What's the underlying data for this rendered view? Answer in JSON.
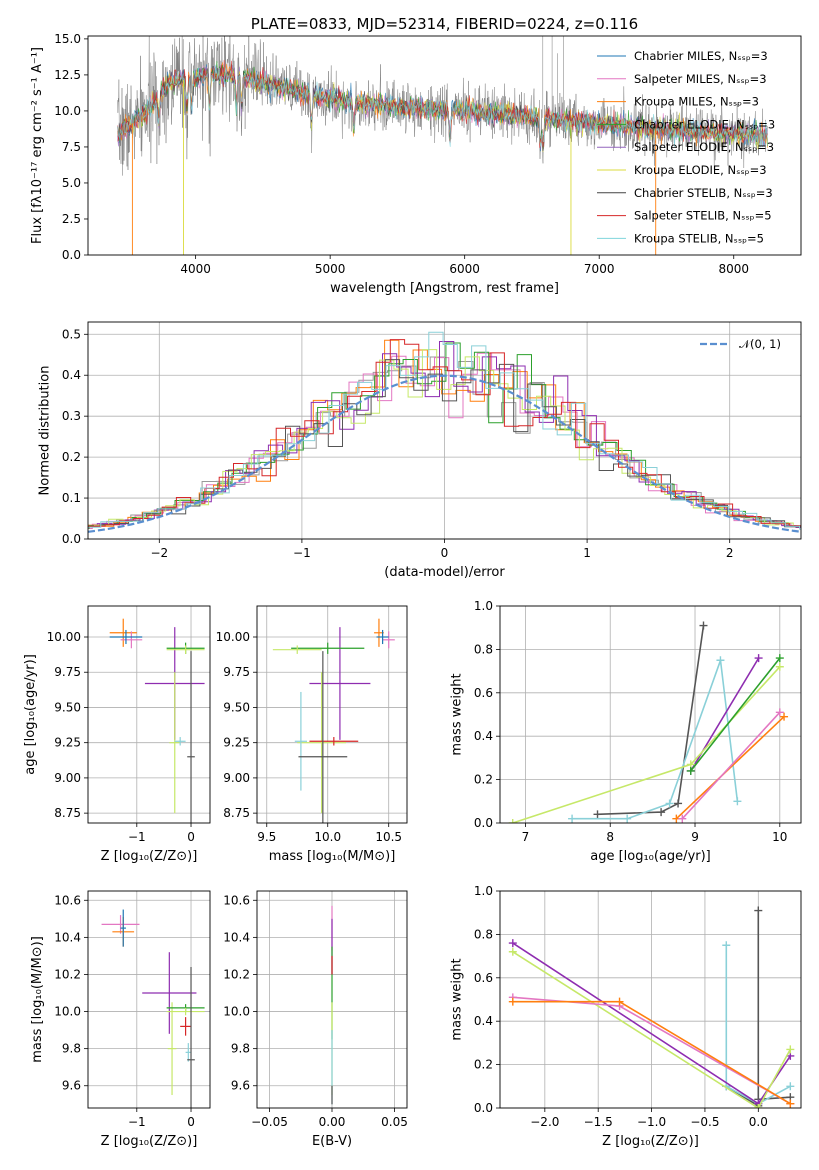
{
  "chart_data": [
    {
      "id": "spectrum",
      "type": "line",
      "title": "PLATE=0833, MJD=52314, FIBERID=0224, z=0.116",
      "xlabel": "wavelength [Angstrom, rest frame]",
      "ylabel": "Flux [fλ10⁻¹⁷ erg cm⁻² s⁻¹ A⁻¹]",
      "xlim": [
        3200,
        8500
      ],
      "ylim": [
        0,
        15.2
      ],
      "xticks": [
        4000,
        5000,
        6000,
        7000,
        8000
      ],
      "yticks": [
        0.0,
        2.5,
        5.0,
        7.5,
        10.0,
        12.5,
        15.0
      ],
      "grid": false,
      "legend_position": "top-right",
      "data_color": "#7f7f7f",
      "series": [
        {
          "name": "Chabrier MILES, Nₛₛₚ=3",
          "color": "#1f77b4"
        },
        {
          "name": "Salpeter MILES, Nₛₛₚ=3",
          "color": "#e377c2"
        },
        {
          "name": "Kroupa MILES, Nₛₛₚ=3",
          "color": "#ff7f0e"
        },
        {
          "name": "Chabrier ELODIE, Nₛₛₚ=3",
          "color": "#2ca02c"
        },
        {
          "name": "Salpeter ELODIE, Nₛₛₚ=3",
          "color": "#9467bd"
        },
        {
          "name": "Kroupa ELODIE, Nₛₛₚ=3",
          "color": "#dbdb3d"
        },
        {
          "name": "Chabrier STELIB, Nₛₛₚ=3",
          "color": "#444444"
        },
        {
          "name": "Salpeter STELIB, Nₛₛₚ=5",
          "color": "#d62728"
        },
        {
          "name": "Kroupa STELIB, Nₛₛₚ=5",
          "color": "#7fd4dc"
        }
      ],
      "continuum_x": [
        3400,
        3600,
        3800,
        3950,
        4100,
        4300,
        4500,
        4800,
        5200,
        5600,
        6000,
        6500,
        7000,
        7500,
        8000,
        8250
      ],
      "continuum_y": [
        8.3,
        9.6,
        12.0,
        12.2,
        12.6,
        12.4,
        12.0,
        11.2,
        10.6,
        10.2,
        10.0,
        9.6,
        9.1,
        8.7,
        8.4,
        8.3
      ]
    },
    {
      "id": "residuals",
      "type": "histogram",
      "xlabel": "(data-model)/error",
      "ylabel": "Normed distribution",
      "xlim": [
        -2.5,
        2.5
      ],
      "ylim": [
        0,
        0.53
      ],
      "xticks": [
        -2,
        -1,
        0,
        1,
        2
      ],
      "yticks": [
        0.0,
        0.1,
        0.2,
        0.3,
        0.4,
        0.5
      ],
      "grid": true,
      "legend_position": "top-right",
      "legend": [
        {
          "label": "𝒩(0, 1)",
          "color": "#5a8fd0",
          "style": "dashed"
        }
      ],
      "bin_width": 0.1,
      "series": [
        {
          "color": "#9a9a9a",
          "offset": 0.0
        },
        {
          "color": "#e377c2",
          "offset": 0.03
        },
        {
          "color": "#ff7f0e",
          "offset": -0.02
        },
        {
          "color": "#2ca02c",
          "offset": 0.01
        },
        {
          "color": "#8e2db0",
          "offset": -0.035
        },
        {
          "color": "#c6e868",
          "offset": 0.045
        },
        {
          "color": "#555555",
          "offset": -0.015
        },
        {
          "color": "#d62728",
          "offset": 0.02
        },
        {
          "color": "#8ad0d8",
          "offset": -0.01
        }
      ]
    },
    {
      "id": "age-vs-Z",
      "type": "errorbar",
      "xlabel": "Z [log₁₀(Z/Z⊙)]",
      "ylabel": "age  [log₁₀(age/yr)]",
      "xlim": [
        -1.9,
        0.35
      ],
      "ylim": [
        8.68,
        10.22
      ],
      "xticks": [
        -1,
        0
      ],
      "yticks": [
        8.75,
        9.0,
        9.25,
        9.5,
        9.75,
        10.0
      ],
      "grid": true,
      "points": [
        {
          "x": -1.25,
          "y": 10.03,
          "xerr": 0.25,
          "yerr": 0.1,
          "color": "#ff7f0e"
        },
        {
          "x": -1.1,
          "y": 9.98,
          "xerr": 0.2,
          "yerr": 0.06,
          "color": "#e377c2"
        },
        {
          "x": -1.2,
          "y": 10.0,
          "xerr": 0.3,
          "yerr": 0.05,
          "color": "#1f77b4"
        },
        {
          "x": -0.3,
          "y": 9.67,
          "xerr": 0.55,
          "yerr": 0.4,
          "color": "#8e2db0"
        },
        {
          "x": -0.3,
          "y": 9.25,
          "xerr": 0.1,
          "yerr": 0.5,
          "color": "#c6e868"
        },
        {
          "x": -0.1,
          "y": 9.92,
          "xerr": 0.35,
          "yerr": 0.04,
          "color": "#2ca02c"
        },
        {
          "x": -0.1,
          "y": 9.91,
          "xerr": 0.35,
          "yerr": 0.03,
          "color": "#c6e868"
        },
        {
          "x": -0.2,
          "y": 9.26,
          "xerr": 0.1,
          "yerr": 0.03,
          "color": "#8ad0d8"
        },
        {
          "x": 0.0,
          "y": 9.15,
          "xerr": 0.07,
          "yerr": 0.75,
          "color": "#555555"
        }
      ]
    },
    {
      "id": "age-vs-mass",
      "type": "errorbar",
      "xlabel": "mass [log₁₀(M/M⊙)]",
      "ylabel": "",
      "xlim": [
        9.42,
        10.65
      ],
      "ylim": [
        8.68,
        10.22
      ],
      "xticks": [
        9.5,
        10.0,
        10.5
      ],
      "yticks": [
        8.75,
        9.0,
        9.25,
        9.5,
        9.75,
        10.0
      ],
      "grid": true,
      "points": [
        {
          "x": 10.42,
          "y": 10.03,
          "xerr": 0.04,
          "yerr": 0.1,
          "color": "#ff7f0e"
        },
        {
          "x": 10.5,
          "y": 9.98,
          "xerr": 0.05,
          "yerr": 0.06,
          "color": "#e377c2"
        },
        {
          "x": 10.45,
          "y": 10.0,
          "xerr": 0.05,
          "yerr": 0.05,
          "color": "#1f77b4"
        },
        {
          "x": 10.1,
          "y": 9.67,
          "xerr": 0.25,
          "yerr": 0.4,
          "color": "#8e2db0"
        },
        {
          "x": 9.95,
          "y": 9.25,
          "xerr": 0.2,
          "yerr": 0.5,
          "color": "#c6e868"
        },
        {
          "x": 10.0,
          "y": 9.92,
          "xerr": 0.3,
          "yerr": 0.04,
          "color": "#2ca02c"
        },
        {
          "x": 9.75,
          "y": 9.91,
          "xerr": 0.2,
          "yerr": 0.03,
          "color": "#c6e868"
        },
        {
          "x": 10.05,
          "y": 9.26,
          "xerr": 0.2,
          "yerr": 0.03,
          "color": "#d62728"
        },
        {
          "x": 9.78,
          "y": 9.26,
          "xerr": 0.05,
          "yerr": 0.35,
          "color": "#8ad0d8"
        },
        {
          "x": 9.96,
          "y": 9.15,
          "xerr": 0.2,
          "yerr": 0.75,
          "color": "#555555"
        }
      ]
    },
    {
      "id": "massweight-vs-age",
      "type": "line",
      "xlabel": "age  [log₁₀(age/yr)]",
      "ylabel": "mass weight",
      "xlim": [
        6.7,
        10.25
      ],
      "ylim": [
        0,
        1.0
      ],
      "xticks": [
        7,
        8,
        9,
        10
      ],
      "yticks": [
        0.0,
        0.2,
        0.4,
        0.6,
        0.8,
        1.0
      ],
      "grid": true,
      "series": [
        {
          "color": "#555555",
          "x": [
            7.85,
            8.6,
            8.8,
            9.1
          ],
          "y": [
            0.04,
            0.05,
            0.09,
            0.91
          ]
        },
        {
          "color": "#8ad0d8",
          "x": [
            7.55,
            8.2,
            8.7,
            9.3,
            9.5
          ],
          "y": [
            0.02,
            0.02,
            0.09,
            0.75,
            0.1
          ]
        },
        {
          "color": "#8e2db0",
          "x": [
            8.95,
            9.75
          ],
          "y": [
            0.24,
            0.76
          ]
        },
        {
          "color": "#c6e868",
          "x": [
            6.85,
            8.95,
            10.0
          ],
          "y": [
            0.0,
            0.27,
            0.72
          ]
        },
        {
          "color": "#2ca02c",
          "x": [
            8.95,
            10.0
          ],
          "y": [
            0.24,
            0.76
          ]
        },
        {
          "color": "#ff7f0e",
          "x": [
            8.78,
            10.05
          ],
          "y": [
            0.02,
            0.49
          ]
        },
        {
          "color": "#e377c2",
          "x": [
            8.85,
            10.0
          ],
          "y": [
            0.02,
            0.51
          ]
        }
      ]
    },
    {
      "id": "mass-vs-Z",
      "type": "errorbar",
      "xlabel": "Z [log₁₀(Z/Z⊙)]",
      "ylabel": "mass [log₁₀(M/M⊙)]",
      "xlim": [
        -1.9,
        0.35
      ],
      "ylim": [
        9.48,
        10.65
      ],
      "xticks": [
        -1,
        0
      ],
      "yticks": [
        9.6,
        9.8,
        10.0,
        10.2,
        10.4,
        10.6
      ],
      "grid": true,
      "points": [
        {
          "x": -1.3,
          "y": 10.47,
          "xerr": 0.35,
          "yerr": 0.05,
          "color": "#e377c2"
        },
        {
          "x": -1.25,
          "y": 10.43,
          "xerr": 0.2,
          "yerr": 0.08,
          "color": "#ff7f0e"
        },
        {
          "x": -1.25,
          "y": 10.45,
          "xerr": 0.05,
          "yerr": 0.1,
          "color": "#1f77b4"
        },
        {
          "x": -0.4,
          "y": 10.1,
          "xerr": 0.5,
          "yerr": 0.22,
          "color": "#8e2db0"
        },
        {
          "x": -0.35,
          "y": 9.8,
          "xerr": 0.08,
          "yerr": 0.25,
          "color": "#c6e868"
        },
        {
          "x": -0.1,
          "y": 10.02,
          "xerr": 0.35,
          "yerr": 0.02,
          "color": "#2ca02c"
        },
        {
          "x": -0.1,
          "y": 10.0,
          "xerr": 0.35,
          "yerr": 0.02,
          "color": "#c6e868"
        },
        {
          "x": -0.1,
          "y": 9.92,
          "xerr": 0.1,
          "yerr": 0.05,
          "color": "#d62728"
        },
        {
          "x": -0.05,
          "y": 9.78,
          "xerr": 0.05,
          "yerr": 0.05,
          "color": "#8ad0d8"
        },
        {
          "x": 0.0,
          "y": 9.74,
          "xerr": 0.07,
          "yerr": 0.5,
          "color": "#555555"
        }
      ]
    },
    {
      "id": "mass-vs-ebv",
      "type": "errorbar",
      "xlabel": "E(B-V)",
      "ylabel": "",
      "xlim": [
        -0.06,
        0.06
      ],
      "ylim": [
        9.48,
        10.65
      ],
      "xticks": [
        -0.05,
        0.0,
        0.05
      ],
      "yticks": [
        9.6,
        9.8,
        10.0,
        10.2,
        10.4,
        10.6
      ],
      "grid": true,
      "points": [
        {
          "x": 0.0,
          "y": 10.45,
          "xerr": 0,
          "yerr": 0.12,
          "color": "#e377c2"
        },
        {
          "x": 0.0,
          "y": 10.35,
          "xerr": 0,
          "yerr": 0.15,
          "color": "#8e2db0"
        },
        {
          "x": 0.0,
          "y": 10.1,
          "xerr": 0,
          "yerr": 0.25,
          "color": "#2ca02c"
        },
        {
          "x": 0.0,
          "y": 9.8,
          "xerr": 0,
          "yerr": 0.25,
          "color": "#c6e868"
        },
        {
          "x": 0.0,
          "y": 9.7,
          "xerr": 0,
          "yerr": 0.2,
          "color": "#8ad0d8"
        },
        {
          "x": 0.0,
          "y": 10.25,
          "xerr": 0,
          "yerr": 0.05,
          "color": "#d62728"
        },
        {
          "x": 0.0,
          "y": 9.55,
          "xerr": 0,
          "yerr": 0.05,
          "color": "#555555"
        }
      ]
    },
    {
      "id": "massweight-vs-Z",
      "type": "line",
      "xlabel": "Z [log₁₀(Z/Z⊙)]",
      "ylabel": "mass weight",
      "xlim": [
        -2.42,
        0.4
      ],
      "ylim": [
        0,
        1.0
      ],
      "xticks": [
        -2.0,
        -1.5,
        -1.0,
        -0.5,
        0.0
      ],
      "yticks": [
        0.0,
        0.2,
        0.4,
        0.6,
        0.8,
        1.0
      ],
      "grid": true,
      "series": [
        {
          "color": "#555555",
          "x": [
            -0.3,
            0.0,
            0.0,
            0.0,
            0.3
          ],
          "y": [
            0.1,
            0.01,
            0.91,
            0.04,
            0.05
          ]
        },
        {
          "color": "#8ad0d8",
          "x": [
            -0.3,
            -0.3,
            0.0,
            0.3
          ],
          "y": [
            0.75,
            0.1,
            0.02,
            0.1
          ]
        },
        {
          "color": "#8e2db0",
          "x": [
            -2.3,
            0.0,
            0.3
          ],
          "y": [
            0.76,
            0.02,
            0.24
          ]
        },
        {
          "color": "#c6e868",
          "x": [
            -2.3,
            0.0,
            0.3
          ],
          "y": [
            0.72,
            0.0,
            0.27
          ]
        },
        {
          "color": "#e377c2",
          "x": [
            -2.3,
            -1.3,
            0.3
          ],
          "y": [
            0.51,
            0.47,
            0.02
          ]
        },
        {
          "color": "#ff7f0e",
          "x": [
            -2.3,
            -1.3,
            0.3
          ],
          "y": [
            0.49,
            0.49,
            0.02
          ]
        }
      ]
    }
  ]
}
